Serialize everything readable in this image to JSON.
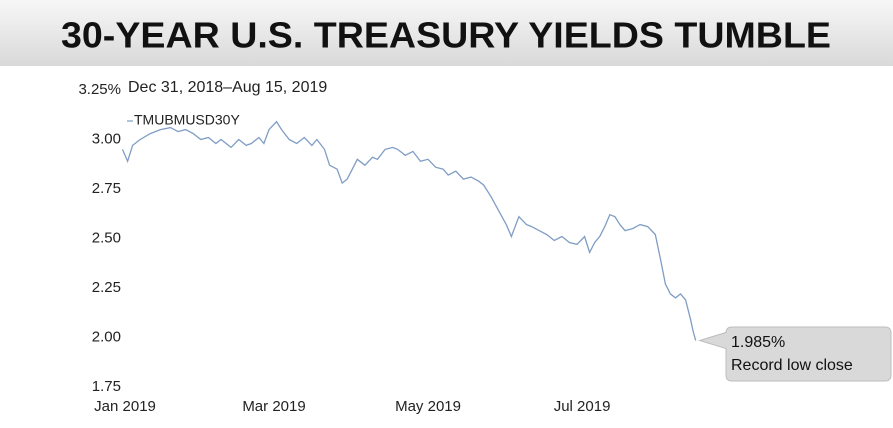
{
  "chart_data": {
    "type": "line",
    "title": "30-YEAR U.S. TREASURY YIELDS TUMBLE",
    "subtitle": "Dec 31, 2018–Aug 15, 2019",
    "x": [
      0,
      2,
      4,
      7,
      11,
      15,
      19,
      22,
      25,
      28,
      31,
      34,
      37,
      39,
      43,
      46,
      49,
      51,
      54,
      56,
      58,
      61,
      63,
      66,
      69,
      72,
      75,
      77,
      80,
      82,
      85,
      87,
      89,
      91,
      93,
      96,
      99,
      101,
      104,
      107,
      109,
      112,
      115,
      118,
      121,
      124,
      127,
      129,
      132,
      135,
      138,
      141,
      143,
      146,
      149,
      152,
      154,
      157,
      160,
      162,
      165,
      168,
      171,
      174,
      177,
      180,
      183,
      185,
      187,
      189,
      191,
      193,
      195,
      197,
      199,
      202,
      205,
      208,
      211,
      213,
      215,
      217,
      219,
      221,
      223,
      225,
      226,
      227
    ],
    "series": [
      {
        "name": "TMUBMUSD30Y",
        "color": "#7f9dc4",
        "values": [
          2.95,
          2.89,
          2.97,
          3.0,
          3.03,
          3.05,
          3.06,
          3.04,
          3.05,
          3.03,
          3.0,
          3.01,
          2.98,
          3.0,
          2.96,
          3.0,
          2.97,
          2.98,
          3.01,
          2.98,
          3.05,
          3.09,
          3.05,
          3.0,
          2.98,
          3.01,
          2.97,
          3.0,
          2.95,
          2.87,
          2.85,
          2.78,
          2.8,
          2.85,
          2.9,
          2.87,
          2.91,
          2.9,
          2.95,
          2.96,
          2.95,
          2.92,
          2.94,
          2.89,
          2.9,
          2.86,
          2.85,
          2.82,
          2.84,
          2.8,
          2.81,
          2.79,
          2.77,
          2.71,
          2.64,
          2.57,
          2.51,
          2.61,
          2.57,
          2.56,
          2.54,
          2.52,
          2.49,
          2.51,
          2.48,
          2.47,
          2.51,
          2.43,
          2.48,
          2.51,
          2.56,
          2.62,
          2.61,
          2.57,
          2.54,
          2.55,
          2.57,
          2.56,
          2.52,
          2.4,
          2.27,
          2.22,
          2.2,
          2.22,
          2.19,
          2.09,
          2.03,
          1.985
        ]
      }
    ],
    "xlim": [
      0,
      227
    ],
    "xticks": [
      {
        "value": 1,
        "label": "Jan 2019"
      },
      {
        "value": 60,
        "label": "Mar 2019"
      },
      {
        "value": 121,
        "label": "May 2019"
      },
      {
        "value": 182,
        "label": "Jul 2019"
      }
    ],
    "ylim": [
      1.75,
      3.25
    ],
    "yticks": [
      1.75,
      {
        "value": 2,
        "label": "2.00"
      },
      2.25,
      {
        "value": 2.5,
        "label": "2.50"
      },
      2.75,
      {
        "value": 3,
        "label": "3.00"
      },
      {
        "value": 3.25,
        "label": "3.25%"
      }
    ],
    "grid": false,
    "annotation": {
      "x": 227,
      "value": 1.985,
      "label": "1.985%",
      "text": "Record low close"
    }
  }
}
